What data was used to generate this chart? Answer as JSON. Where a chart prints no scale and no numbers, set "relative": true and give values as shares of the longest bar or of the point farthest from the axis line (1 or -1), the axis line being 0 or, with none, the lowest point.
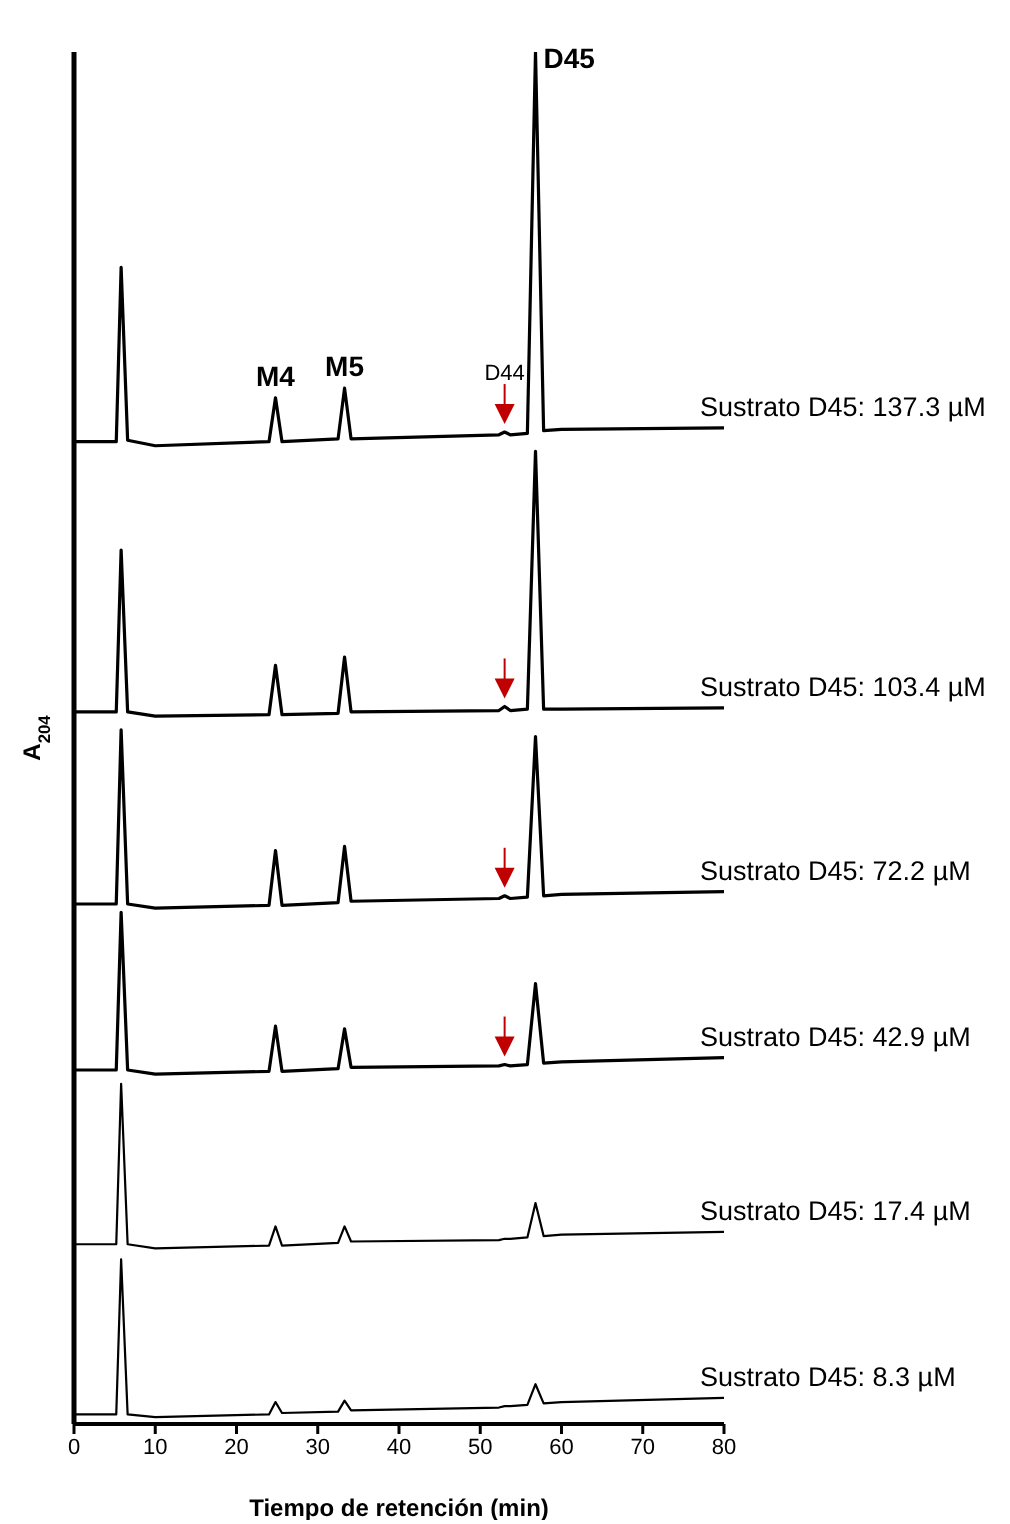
{
  "chart_data": {
    "type": "line",
    "relative": true,
    "xlabel": "Tiempo de retención (min)",
    "ylabel": "A$_{204}$",
    "xlim": [
      0,
      80
    ],
    "xticks": [
      0,
      10,
      20,
      30,
      40,
      50,
      60,
      70,
      80
    ],
    "marker": "none",
    "line_style": "solid",
    "x": [
      0,
      5.2,
      5.8,
      6.6,
      10,
      24,
      24.8,
      25.6,
      32.5,
      33.3,
      34.1,
      52.3,
      53,
      53.7,
      55.8,
      56.8,
      57.8,
      60,
      80
    ],
    "series": [
      {
        "name": "Sustrato D45: 137.3 µM",
        "color": "#000000",
        "values": [
          0.716,
          0.716,
          0.843,
          0.717,
          0.713,
          0.716,
          0.748,
          0.716,
          0.718,
          0.755,
          0.718,
          0.721,
          0.723,
          0.721,
          0.722,
          1.0,
          0.724,
          0.725,
          0.726
        ]
      },
      {
        "name": "Sustrato D45: 103.4 µM",
        "color": "#000000",
        "values": [
          0.519,
          0.519,
          0.637,
          0.519,
          0.516,
          0.517,
          0.553,
          0.517,
          0.518,
          0.559,
          0.519,
          0.52,
          0.523,
          0.52,
          0.521,
          0.709,
          0.521,
          0.521,
          0.522
        ]
      },
      {
        "name": "Sustrato D45: 72.2 µM",
        "color": "#000000",
        "values": [
          0.379,
          0.379,
          0.506,
          0.379,
          0.376,
          0.378,
          0.418,
          0.378,
          0.38,
          0.421,
          0.381,
          0.383,
          0.385,
          0.383,
          0.384,
          0.501,
          0.385,
          0.386,
          0.388
        ]
      },
      {
        "name": "Sustrato D45: 42.9 µM",
        "color": "#000000",
        "values": [
          0.258,
          0.258,
          0.373,
          0.258,
          0.255,
          0.257,
          0.29,
          0.257,
          0.259,
          0.288,
          0.26,
          0.261,
          0.262,
          0.261,
          0.262,
          0.321,
          0.263,
          0.264,
          0.267
        ]
      },
      {
        "name": "Sustrato D45: 17.4 µM",
        "color": "#000000",
        "values": [
          0.131,
          0.131,
          0.248,
          0.131,
          0.128,
          0.13,
          0.144,
          0.13,
          0.132,
          0.144,
          0.133,
          0.134,
          0.135,
          0.135,
          0.136,
          0.161,
          0.137,
          0.138,
          0.14
        ]
      },
      {
        "name": "Sustrato D45: 8.3 µM",
        "color": "#000000",
        "values": [
          0.007,
          0.007,
          0.12,
          0.007,
          0.005,
          0.007,
          0.016,
          0.008,
          0.009,
          0.017,
          0.01,
          0.012,
          0.013,
          0.013,
          0.014,
          0.029,
          0.015,
          0.016,
          0.019
        ]
      }
    ],
    "annotations": [
      {
        "text": "M4",
        "x": 24.8,
        "y": 0.748
      },
      {
        "text": "M5",
        "x": 33.3,
        "y": 0.755
      },
      {
        "text": "D44",
        "x": 53,
        "y": 0.723
      },
      {
        "text": "D45",
        "x": 56.8,
        "y": 1.0
      }
    ]
  }
}
